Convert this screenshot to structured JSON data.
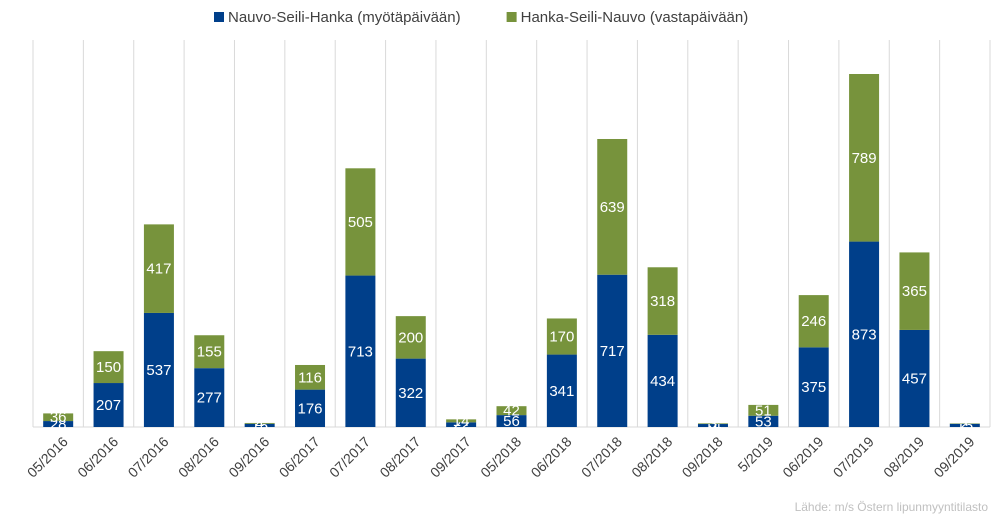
{
  "chart_data": {
    "type": "stacked_bar",
    "categories": [
      "05/2016",
      "06/2016",
      "07/2016",
      "08/2016",
      "09/2016",
      "06/2017",
      "07/2017",
      "08/2017",
      "09/2017",
      "05/2018",
      "06/2018",
      "07/2018",
      "08/2018",
      "09/2018",
      "5/2019",
      "06/2019",
      "07/2019",
      "08/2019",
      "09/2019"
    ],
    "series": [
      {
        "name": "Nauvo-Seili-Hanka (myötäpäivään)",
        "color": "#003f8a",
        "values": [
          28,
          207,
          537,
          277,
          15,
          176,
          713,
          322,
          22,
          56,
          341,
          717,
          434,
          14,
          53,
          375,
          873,
          457,
          15
        ]
      },
      {
        "name": "Hanka-Seili-Nauvo (vastapäivään)",
        "color": "#77933c",
        "values": [
          36,
          150,
          417,
          155,
          4,
          116,
          505,
          200,
          14,
          42,
          170,
          639,
          318,
          3,
          51,
          246,
          789,
          365,
          2
        ]
      }
    ],
    "legend": "top",
    "source": "Lähde: m/s Östern lipunmyyntitilasto"
  }
}
